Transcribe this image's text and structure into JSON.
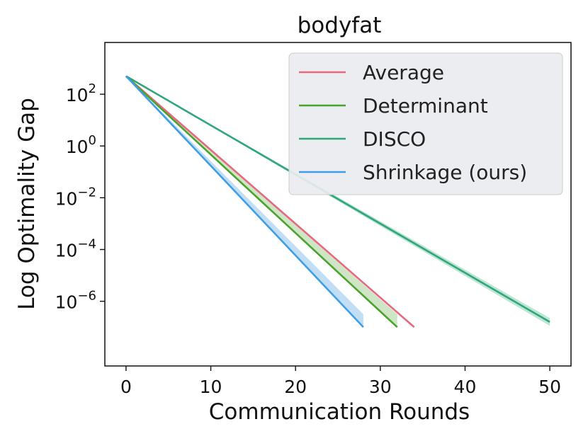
{
  "chart_data": {
    "type": "line",
    "title": "bodyfat",
    "xlabel": "Communication Rounds",
    "ylabel": "Log Optimality Gap",
    "yscale": "log",
    "xlim": [
      -2.5,
      52.5
    ],
    "ylim_log10": [
      -8.5,
      4.0
    ],
    "x_ticks": [
      0,
      10,
      20,
      30,
      40,
      50
    ],
    "y_ticks_log10": [
      2,
      0,
      -2,
      -4,
      -6
    ],
    "y_tick_base": "10",
    "legend_position": "top-right",
    "grid": false,
    "series": [
      {
        "name": "Average",
        "color": "#e8697f",
        "x": [
          0,
          34
        ],
        "y_log10": [
          2.7,
          -7.0
        ],
        "band_log10": null
      },
      {
        "name": "Determinant",
        "color": "#4aa32d",
        "x": [
          0,
          32
        ],
        "y_log10": [
          2.7,
          -7.0
        ],
        "band_log10": {
          "x": [
            0,
            32
          ],
          "upper": [
            2.7,
            -6.5
          ],
          "lower": [
            2.7,
            -7.0
          ]
        },
        "band_color": "#cfe6c6"
      },
      {
        "name": "DISCO",
        "color": "#2fa77a",
        "x": [
          0,
          50
        ],
        "y_log10": [
          2.7,
          -6.8
        ],
        "band_log10": {
          "x": [
            0,
            50
          ],
          "upper": [
            2.7,
            -6.65
          ],
          "lower": [
            2.7,
            -6.95
          ]
        },
        "band_color": "#bfe5d5"
      },
      {
        "name": "Shrinkage (ours)",
        "color": "#3d9ee6",
        "x": [
          0,
          28
        ],
        "y_log10": [
          2.7,
          -7.0
        ],
        "band_log10": {
          "x": [
            0,
            28
          ],
          "upper": [
            2.7,
            -6.5
          ],
          "lower": [
            2.7,
            -7.0
          ]
        },
        "band_color": "#c2def5"
      }
    ]
  }
}
